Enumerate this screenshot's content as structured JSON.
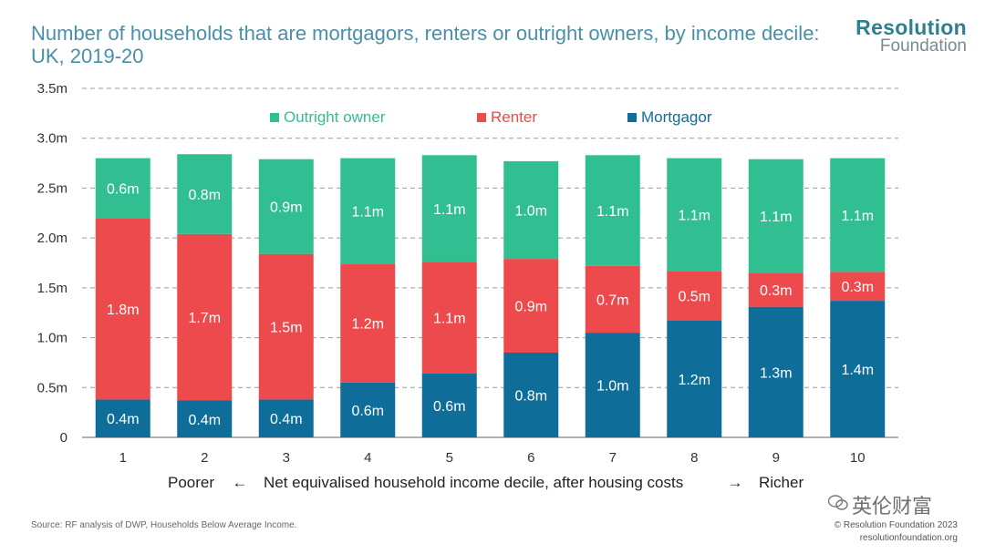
{
  "title": "Number of households that are mortgagors, renters or outright owners, by income decile: UK, 2019-20",
  "logo": {
    "name": "Resolution",
    "sub": "Foundation"
  },
  "source": "Source: RF analysis of DWP, Households Below Average Income.",
  "copyright": {
    "line1": "© Resolution Foundation 2023",
    "line2": "resolutionfoundation.org"
  },
  "watermark": "英伦财富",
  "chart_data": {
    "type": "bar",
    "stacked": true,
    "categories": [
      "1",
      "2",
      "3",
      "4",
      "5",
      "6",
      "7",
      "8",
      "9",
      "10"
    ],
    "series": [
      {
        "name": "Mortgagor",
        "color": "#0e6e99",
        "values": [
          0.38,
          0.37,
          0.38,
          0.55,
          0.64,
          0.85,
          1.05,
          1.17,
          1.31,
          1.37
        ],
        "labels": [
          "0.4m",
          "0.4m",
          "0.4m",
          "0.6m",
          "0.6m",
          "0.8m",
          "1.0m",
          "1.2m",
          "1.3m",
          "1.4m"
        ]
      },
      {
        "name": "Renter",
        "color": "#ec4a4c",
        "values": [
          1.82,
          1.67,
          1.46,
          1.19,
          1.12,
          0.94,
          0.67,
          0.5,
          0.34,
          0.29
        ],
        "labels": [
          "1.8m",
          "1.7m",
          "1.5m",
          "1.2m",
          "1.1m",
          "0.9m",
          "0.7m",
          "0.5m",
          "0.3m",
          "0.3m"
        ]
      },
      {
        "name": "Outright owner",
        "color": "#31bf92",
        "values": [
          0.6,
          0.8,
          0.95,
          1.06,
          1.07,
          0.98,
          1.11,
          1.13,
          1.14,
          1.14
        ],
        "labels": [
          "0.6m",
          "0.8m",
          "0.9m",
          "1.1m",
          "1.1m",
          "1.0m",
          "1.1m",
          "1.1m",
          "1.1m",
          "1.1m"
        ]
      }
    ],
    "legend_order": [
      "Outright owner",
      "Renter",
      "Mortgagor"
    ],
    "ylim": [
      0,
      3.5
    ],
    "yticks": [
      0,
      0.5,
      1.0,
      1.5,
      2.0,
      2.5,
      3.0,
      3.5
    ],
    "ytick_labels": [
      "0",
      "0.5m",
      "1.0m",
      "1.5m",
      "2.0m",
      "2.5m",
      "3.0m",
      "3.5m"
    ],
    "xlabel": {
      "left": "Poorer",
      "left_arrow": "←",
      "text": "Net equivalised household income decile, after housing costs",
      "right_arrow": "→",
      "right": "Richer"
    },
    "grid": true,
    "legend_position": "top"
  }
}
